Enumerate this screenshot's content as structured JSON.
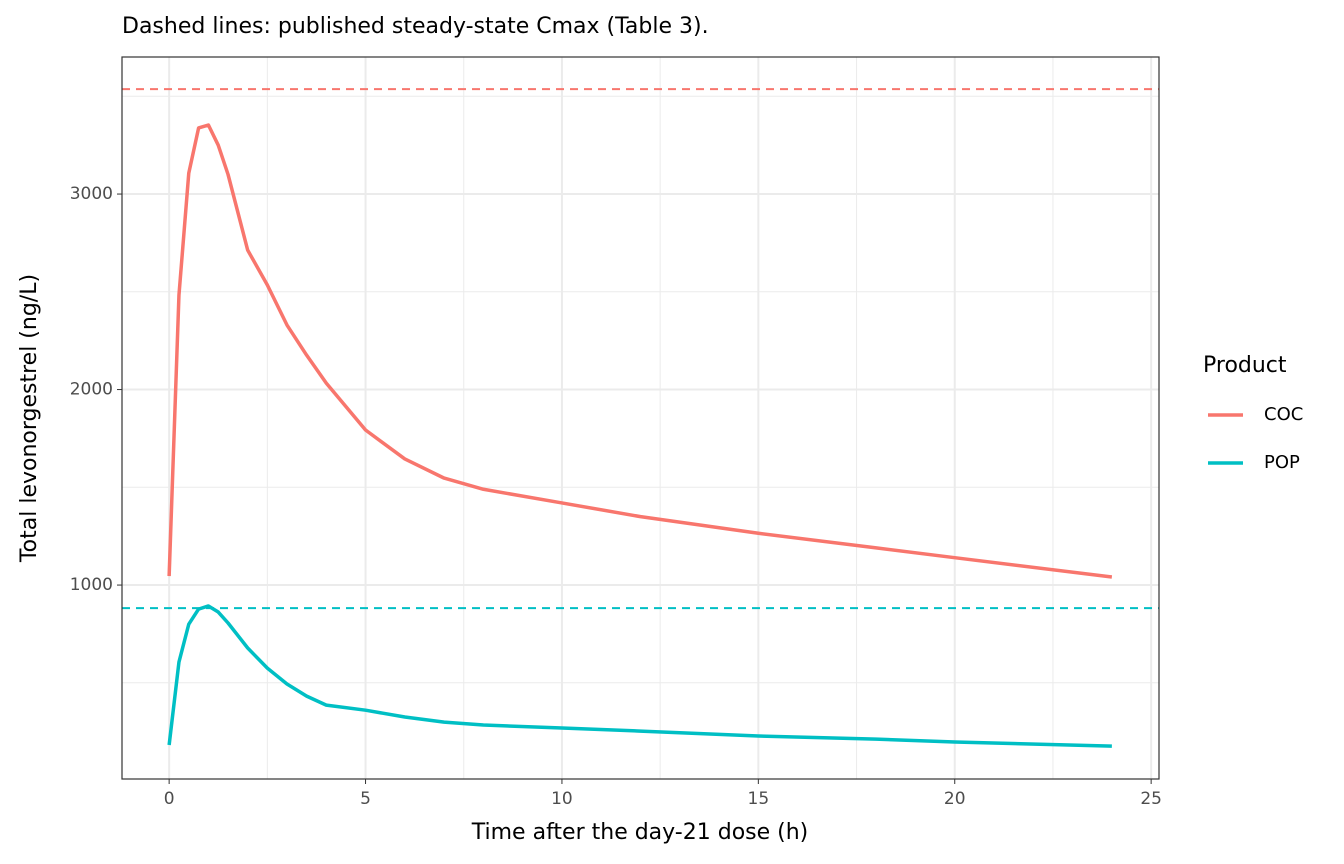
{
  "chart_data": {
    "type": "line",
    "title": "Dashed lines: published steady-state Cmax (Table 3).",
    "xlabel": "Time after the day-21 dose (h)",
    "ylabel": "Total levonorgestrel (ng/L)",
    "legend_title": "Product",
    "legend": "right",
    "grid": true,
    "x": [
      0,
      0.25,
      0.5,
      0.75,
      1,
      1.25,
      1.5,
      2,
      2.5,
      3,
      3.5,
      4,
      5,
      6,
      7,
      8,
      10,
      12,
      15,
      18,
      20,
      24
    ],
    "series": [
      {
        "name": "COC",
        "color": "#f8766d",
        "values": [
          1046,
          2483,
          3107,
          3338,
          3353,
          3250,
          3100,
          2713,
          2535,
          2330,
          2176,
          2033,
          1793,
          1645,
          1547,
          1490,
          1420,
          1350,
          1265,
          1190,
          1140,
          1041
        ]
      },
      {
        "name": "POP",
        "color": "#00bfc4",
        "values": [
          182,
          606,
          800,
          877,
          893,
          862,
          806,
          678,
          575,
          494,
          432,
          386,
          360,
          325,
          299,
          284,
          269,
          253,
          228,
          212,
          197,
          176
        ]
      }
    ],
    "hlines": [
      {
        "value": 3537,
        "color": "#f8766d"
      },
      {
        "value": 882,
        "color": "#00bfc4"
      }
    ],
    "xlim": [
      -1.2,
      25.2
    ],
    "ylim": [
      8,
      3701
    ],
    "xticks": [
      0,
      5,
      10,
      15,
      20,
      25
    ],
    "yticks": [
      1000,
      2000,
      3000
    ],
    "xminor": [
      2.5,
      7.5,
      12.5,
      17.5,
      22.5
    ],
    "yminor": [
      500,
      1500,
      2500,
      3500
    ]
  }
}
